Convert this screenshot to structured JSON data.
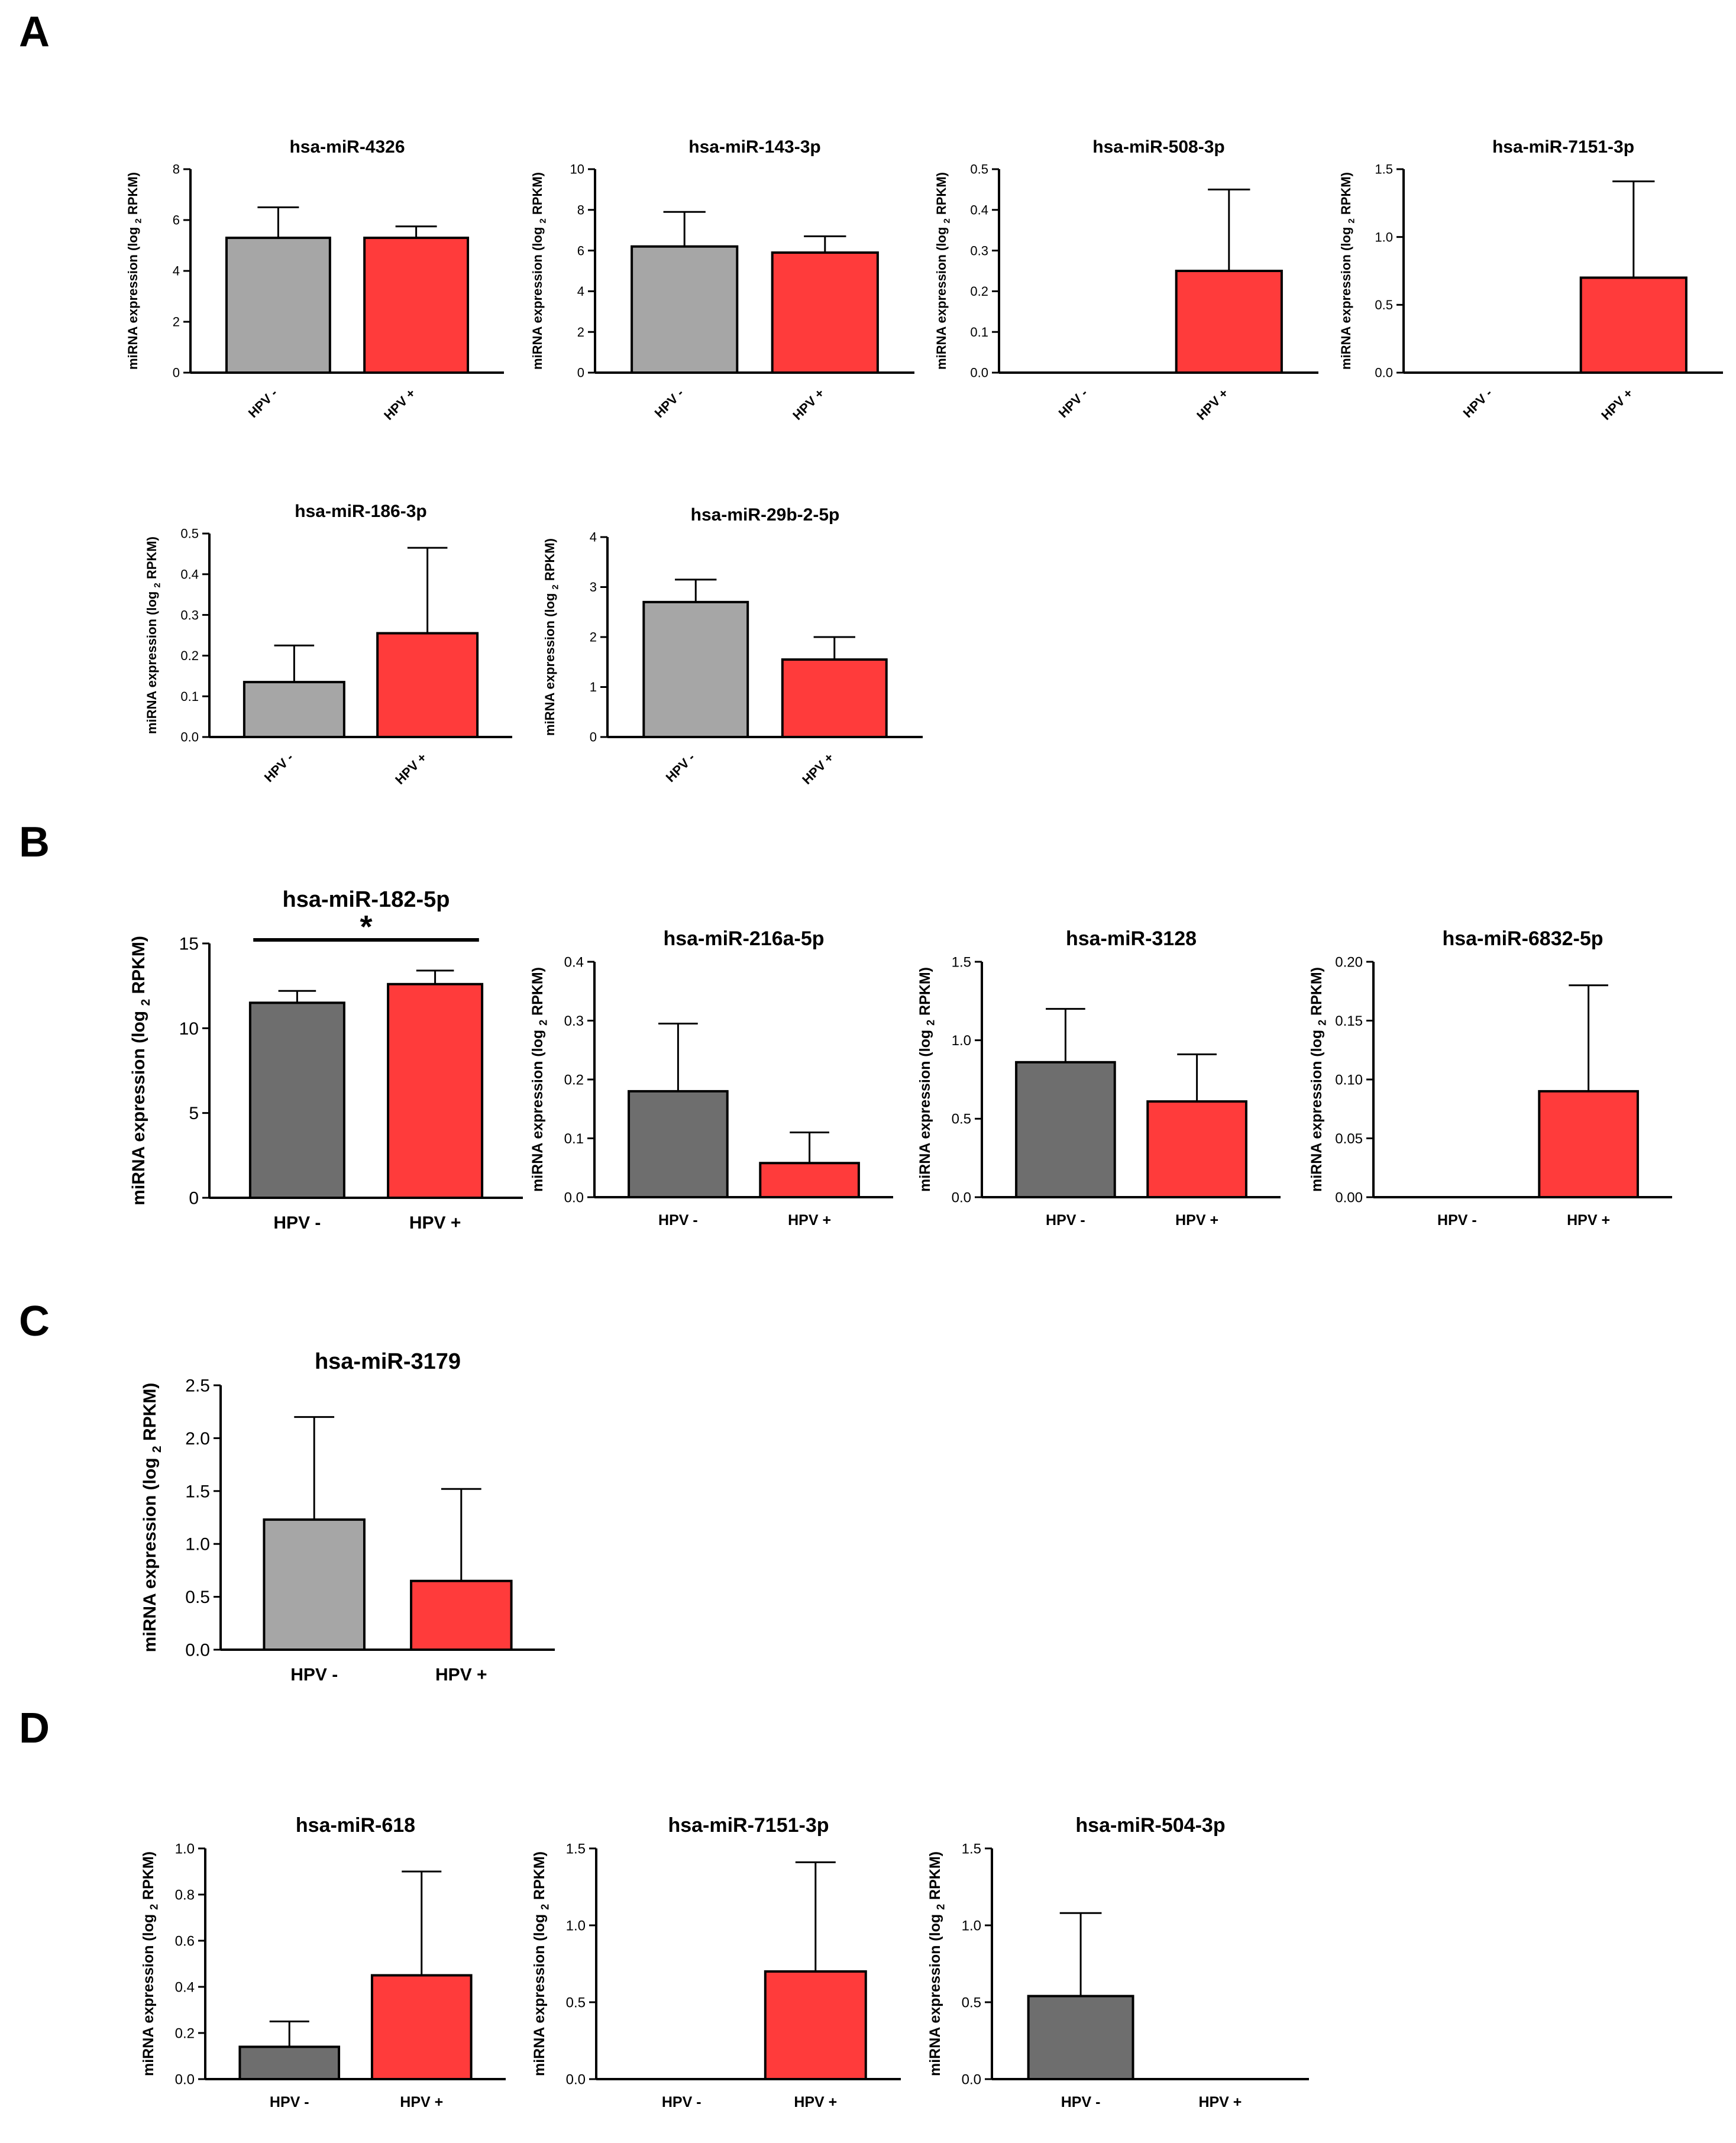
{
  "panel_labels": [
    "A",
    "B",
    "C",
    "D"
  ],
  "colors": {
    "gray_light": "#a6a6a6",
    "gray_dark": "#6e6e6e",
    "red": "#ff3b3b",
    "axis": "#000000"
  },
  "chart_data": [
    {
      "panel": "A",
      "type": "bar",
      "title": "hsa-miR-4326",
      "ylabel": "miRNA expression (log 2 RPKM)",
      "categories": [
        "HPV -",
        "HPV +"
      ],
      "values": [
        5.3,
        5.3
      ],
      "errors": [
        1.2,
        0.45
      ],
      "ylim": [
        0,
        8
      ],
      "yticks": [
        "0",
        "2",
        "4",
        "6",
        "8"
      ],
      "significance": ""
    },
    {
      "panel": "A",
      "type": "bar",
      "title": "hsa-miR-143-3p",
      "ylabel": "miRNA expression (log 2 RPKM)",
      "categories": [
        "HPV -",
        "HPV +"
      ],
      "values": [
        6.2,
        5.9
      ],
      "errors": [
        1.7,
        0.8
      ],
      "ylim": [
        0,
        10
      ],
      "yticks": [
        "0",
        "2",
        "4",
        "6",
        "8",
        "10"
      ],
      "significance": ""
    },
    {
      "panel": "A",
      "type": "bar",
      "title": "hsa-miR-508-3p",
      "ylabel": "miRNA expression (log 2 RPKM)",
      "categories": [
        "HPV -",
        "HPV +"
      ],
      "values": [
        0,
        0.25
      ],
      "errors": [
        0,
        0.2
      ],
      "ylim": [
        0,
        0.5
      ],
      "yticks": [
        "0.0",
        "0.1",
        "0.2",
        "0.3",
        "0.4",
        "0.5"
      ],
      "significance": ""
    },
    {
      "panel": "A",
      "type": "bar",
      "title": "hsa-miR-7151-3p",
      "ylabel": "miRNA expression (log 2 RPKM)",
      "categories": [
        "HPV -",
        "HPV +"
      ],
      "values": [
        0,
        0.7
      ],
      "errors": [
        0,
        0.71
      ],
      "ylim": [
        0,
        1.5
      ],
      "yticks": [
        "0.0",
        "0.5",
        "1.0",
        "1.5"
      ],
      "significance": ""
    },
    {
      "panel": "A",
      "type": "bar",
      "title": "hsa-miR-186-3p",
      "ylabel": "miRNA expression (log 2 RPKM)",
      "categories": [
        "HPV -",
        "HPV +"
      ],
      "values": [
        0.135,
        0.255
      ],
      "errors": [
        0.09,
        0.21
      ],
      "ylim": [
        0,
        0.5
      ],
      "yticks": [
        "0.0",
        "0.1",
        "0.2",
        "0.3",
        "0.4",
        "0.5"
      ],
      "significance": ""
    },
    {
      "panel": "A",
      "type": "bar",
      "title": "hsa-miR-29b-2-5p",
      "ylabel": "miRNA expression (log 2 RPKM)",
      "categories": [
        "HPV -",
        "HPV +"
      ],
      "values": [
        2.7,
        1.55
      ],
      "errors": [
        0.45,
        0.45
      ],
      "ylim": [
        0,
        4
      ],
      "yticks": [
        "0",
        "1",
        "2",
        "3",
        "4"
      ],
      "significance": ""
    },
    {
      "panel": "B",
      "type": "bar",
      "title": "hsa-miR-182-5p",
      "ylabel": "miRNA expression (log 2 RPKM)",
      "categories": [
        "HPV -",
        "HPV +"
      ],
      "values": [
        11.5,
        12.6
      ],
      "errors": [
        0.7,
        0.8
      ],
      "ylim": [
        0,
        15
      ],
      "yticks": [
        "0",
        "5",
        "10",
        "15"
      ],
      "significance": "*"
    },
    {
      "panel": "B",
      "type": "bar",
      "title": "hsa-miR-216a-5p",
      "ylabel": "miRNA expression (log 2 RPKM)",
      "categories": [
        "HPV -",
        "HPV +"
      ],
      "values": [
        0.18,
        0.058
      ],
      "errors": [
        0.115,
        0.052
      ],
      "ylim": [
        0,
        0.4
      ],
      "yticks": [
        "0.0",
        "0.1",
        "0.2",
        "0.3",
        "0.4"
      ],
      "significance": ""
    },
    {
      "panel": "B",
      "type": "bar",
      "title": "hsa-miR-3128",
      "ylabel": "miRNA expression (log 2 RPKM)",
      "categories": [
        "HPV -",
        "HPV +"
      ],
      "values": [
        0.86,
        0.61
      ],
      "errors": [
        0.34,
        0.3
      ],
      "ylim": [
        0,
        1.5
      ],
      "yticks": [
        "0.0",
        "0.5",
        "1.0",
        "1.5"
      ],
      "significance": ""
    },
    {
      "panel": "B",
      "type": "bar",
      "title": "hsa-miR-6832-5p",
      "ylabel": "miRNA expression (log 2 RPKM)",
      "categories": [
        "HPV -",
        "HPV +"
      ],
      "values": [
        0,
        0.09
      ],
      "errors": [
        0,
        0.09
      ],
      "ylim": [
        0,
        0.2
      ],
      "yticks": [
        "0.00",
        "0.05",
        "0.10",
        "0.15",
        "0.20"
      ],
      "significance": ""
    },
    {
      "panel": "C",
      "type": "bar",
      "title": "hsa-miR-3179",
      "ylabel": "miRNA expression (log 2 RPKM)",
      "categories": [
        "HPV -",
        "HPV +"
      ],
      "values": [
        1.23,
        0.65
      ],
      "errors": [
        0.97,
        0.87
      ],
      "ylim": [
        0,
        2.5
      ],
      "yticks": [
        "0.0",
        "0.5",
        "1.0",
        "1.5",
        "2.0",
        "2.5"
      ],
      "significance": ""
    },
    {
      "panel": "D",
      "type": "bar",
      "title": "hsa-miR-618",
      "ylabel": "miRNA expression (log 2 RPKM)",
      "categories": [
        "HPV -",
        "HPV +"
      ],
      "values": [
        0.14,
        0.45
      ],
      "errors": [
        0.11,
        0.45
      ],
      "ylim": [
        0,
        1.0
      ],
      "yticks": [
        "0.0",
        "0.2",
        "0.4",
        "0.6",
        "0.8",
        "1.0"
      ],
      "significance": ""
    },
    {
      "panel": "D",
      "type": "bar",
      "title": "hsa-miR-7151-3p",
      "ylabel": "miRNA expression (log 2 RPKM)",
      "categories": [
        "HPV -",
        "HPV +"
      ],
      "values": [
        0,
        0.7
      ],
      "errors": [
        0,
        0.71
      ],
      "ylim": [
        0,
        1.5
      ],
      "yticks": [
        "0.0",
        "0.5",
        "1.0",
        "1.5"
      ],
      "significance": ""
    },
    {
      "panel": "D",
      "type": "bar",
      "title": "hsa-miR-504-3p",
      "ylabel": "miRNA expression (log 2 RPKM)",
      "categories": [
        "HPV -",
        "HPV +"
      ],
      "values": [
        0.54,
        0
      ],
      "errors": [
        0.54,
        0
      ],
      "ylim": [
        0,
        1.5
      ],
      "yticks": [
        "0.0",
        "0.5",
        "1.0",
        "1.5"
      ],
      "significance": ""
    }
  ]
}
